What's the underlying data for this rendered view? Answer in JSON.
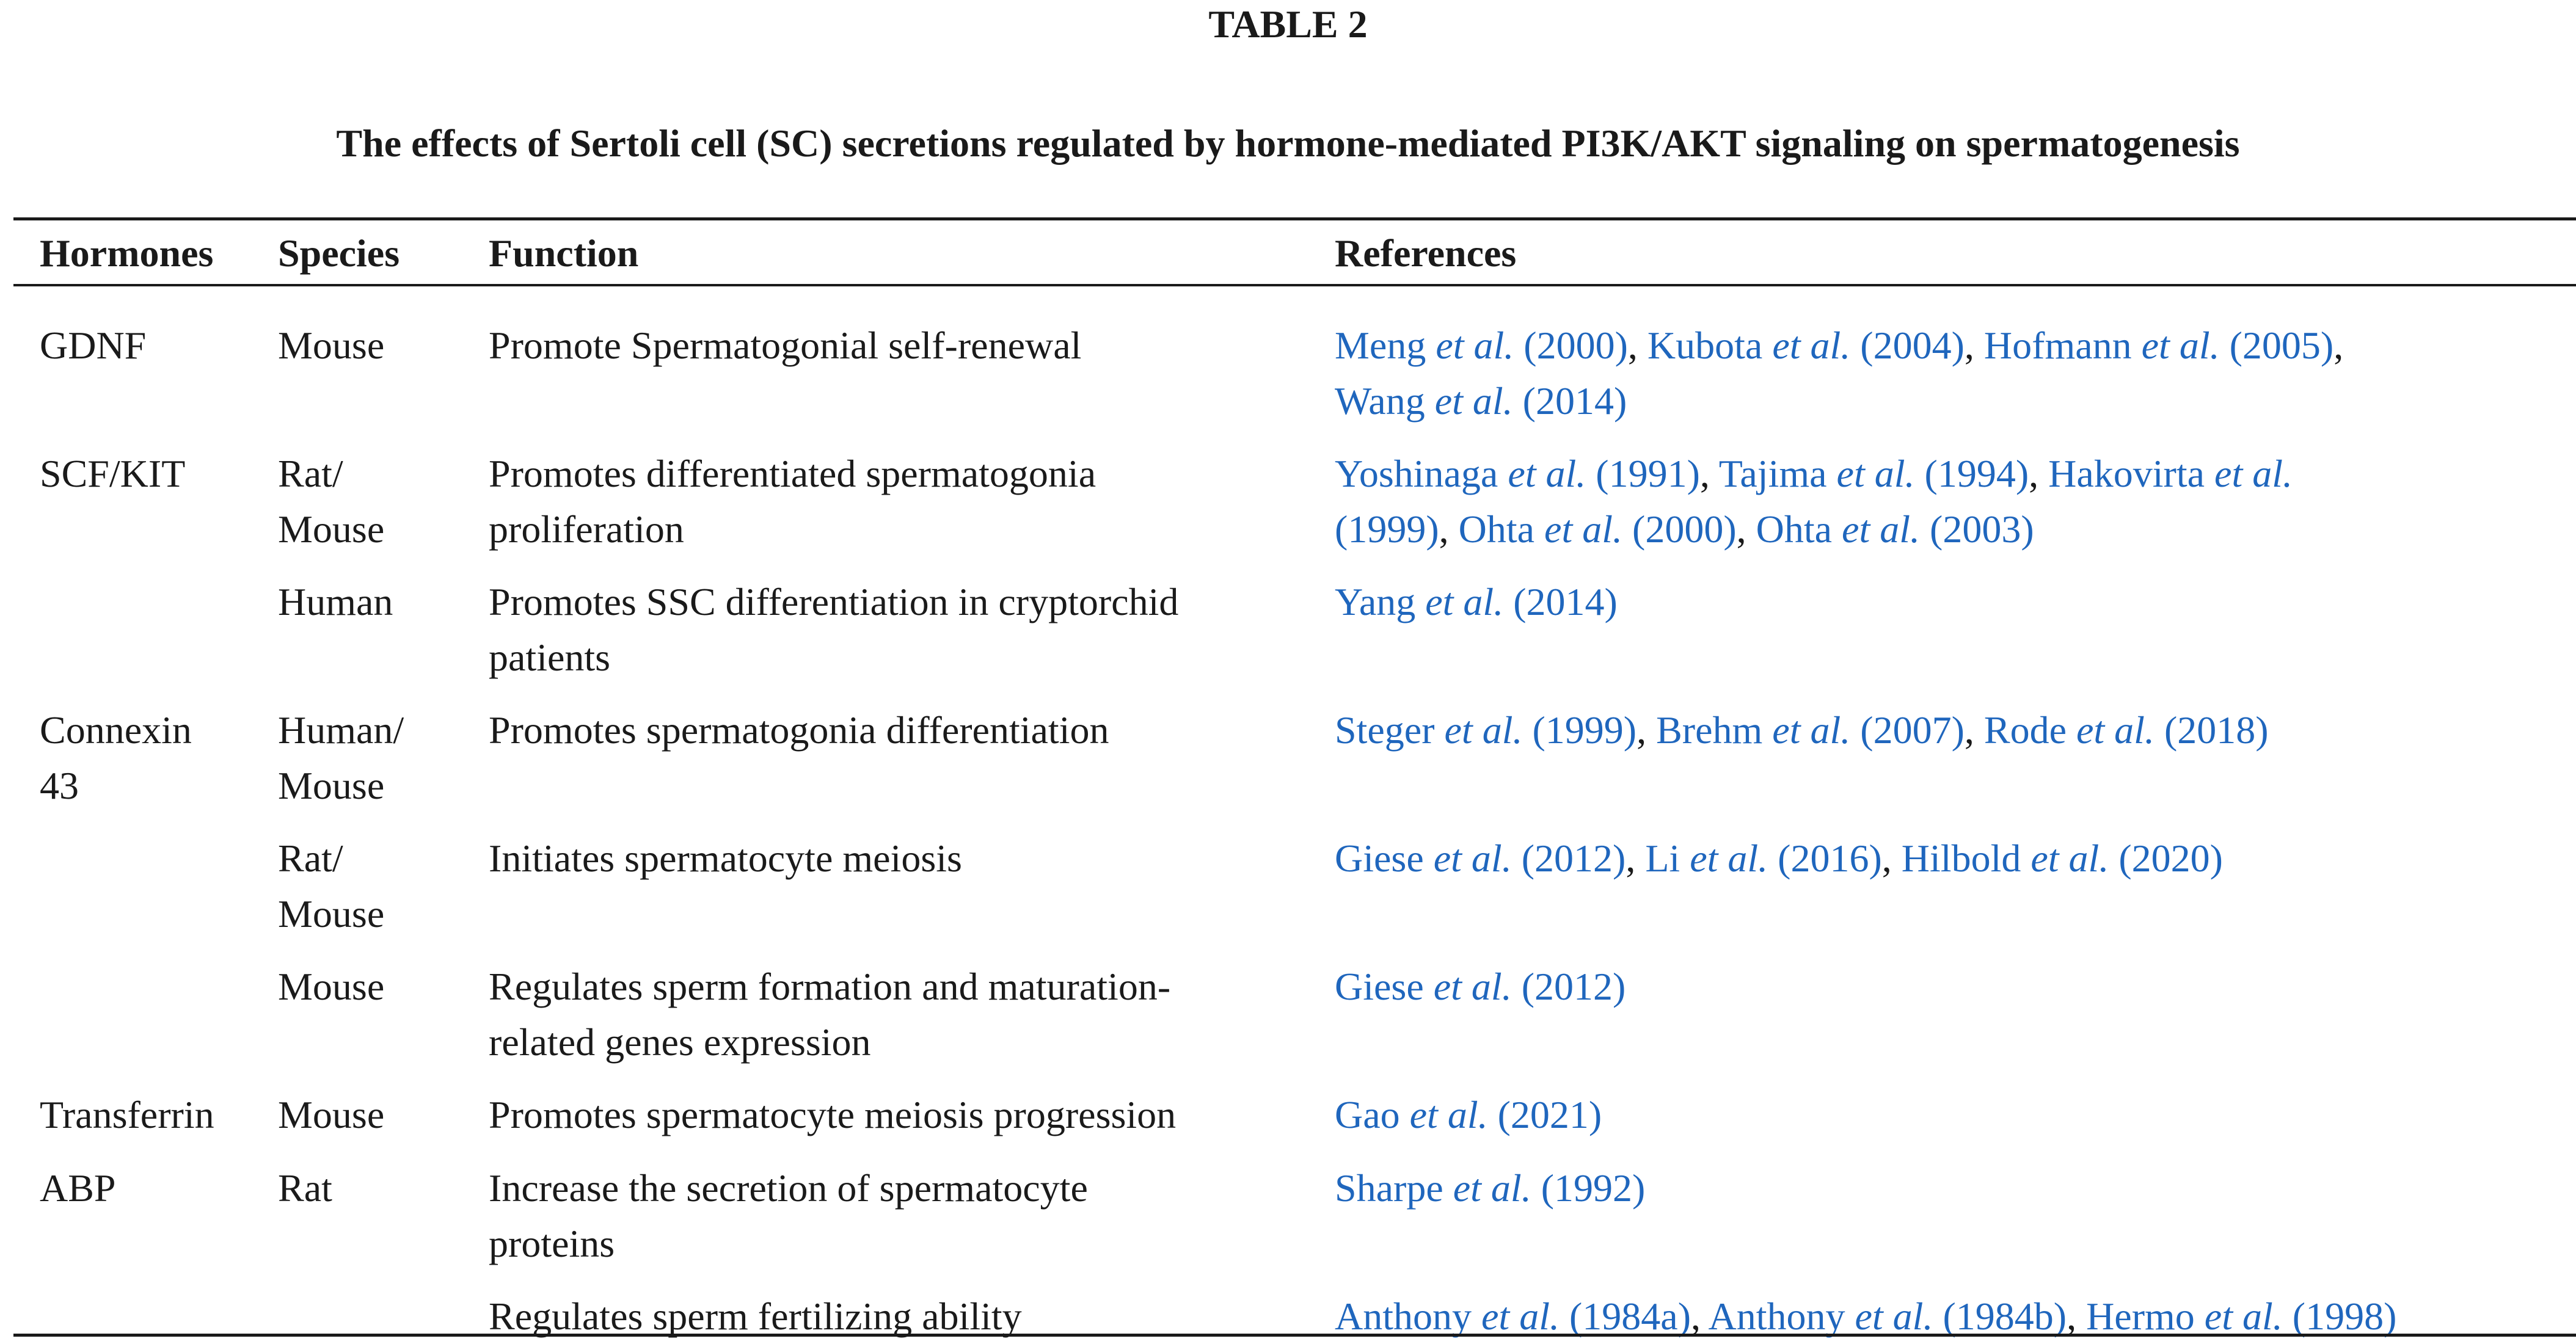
{
  "table": {
    "label": "TABLE 2",
    "title": "The effects of Sertoli cell (SC) secretions regulated by hormone-mediated PI3K/AKT signaling on spermatogenesis",
    "headers": {
      "hormones": "Hormones",
      "species": "Species",
      "function": "Function",
      "references": "References"
    },
    "rows": [
      {
        "hormone": [
          "GDNF"
        ],
        "species": [
          "Mouse"
        ],
        "function": [
          "Promote Spermatogonial self-renewal"
        ],
        "references": [
          [
            {
              "a": "Meng ",
              "b": "et al.",
              "c": " (2000)",
              "sep": ", "
            },
            {
              "a": "Kubota ",
              "b": "et al.",
              "c": " (2004)",
              "sep": ", "
            },
            {
              "a": "Hofmann ",
              "b": "et al.",
              "c": " (2005)",
              "sep": ","
            }
          ],
          [
            {
              "a": "Wang ",
              "b": "et al.",
              "c": " (2014)",
              "sep": ""
            }
          ]
        ]
      },
      {
        "hormone": [
          "SCF/KIT"
        ],
        "species": [
          "Rat/",
          "Mouse"
        ],
        "function": [
          "Promotes differentiated spermatogonia",
          "proliferation"
        ],
        "references": [
          [
            {
              "a": "Yoshinaga ",
              "b": "et al.",
              "c": " (1991)",
              "sep": ", "
            },
            {
              "a": "Tajima ",
              "b": "et al.",
              "c": " (1994)",
              "sep": ", "
            },
            {
              "a": "Hakovirta ",
              "b": "et al.",
              "c": "",
              "sep": ""
            }
          ],
          [
            {
              "a": "(1999)",
              "b": "",
              "c": "",
              "sep": ", "
            },
            {
              "a": "Ohta ",
              "b": "et al.",
              "c": " (2000)",
              "sep": ", "
            },
            {
              "a": "Ohta ",
              "b": "et al.",
              "c": " (2003)",
              "sep": ""
            }
          ]
        ]
      },
      {
        "hormone": [],
        "species": [
          "Human"
        ],
        "function": [
          "Promotes SSC differentiation in cryptorchid",
          "patients"
        ],
        "references": [
          [
            {
              "a": "Yang ",
              "b": "et al.",
              "c": " (2014)",
              "sep": ""
            }
          ]
        ]
      },
      {
        "hormone": [
          "Connexin",
          "43"
        ],
        "species": [
          "Human/",
          "Mouse"
        ],
        "function": [
          "Promotes spermatogonia differentiation"
        ],
        "references": [
          [
            {
              "a": "Steger ",
              "b": "et al.",
              "c": " (1999)",
              "sep": ", "
            },
            {
              "a": "Brehm ",
              "b": "et al.",
              "c": " (2007)",
              "sep": ", "
            },
            {
              "a": "Rode ",
              "b": "et al.",
              "c": " (2018)",
              "sep": ""
            }
          ]
        ]
      },
      {
        "hormone": [],
        "species": [
          "Rat/",
          "Mouse"
        ],
        "function": [
          "Initiates spermatocyte meiosis"
        ],
        "references": [
          [
            {
              "a": "Giese ",
              "b": "et al.",
              "c": " (2012)",
              "sep": ", "
            },
            {
              "a": "Li ",
              "b": "et al.",
              "c": " (2016)",
              "sep": ", "
            },
            {
              "a": "Hilbold ",
              "b": "et al.",
              "c": " (2020)",
              "sep": ""
            }
          ]
        ]
      },
      {
        "hormone": [],
        "species": [
          "Mouse"
        ],
        "function": [
          "Regulates sperm formation and maturation-",
          "related genes expression"
        ],
        "references": [
          [
            {
              "a": "Giese ",
              "b": "et al.",
              "c": " (2012)",
              "sep": ""
            }
          ]
        ]
      },
      {
        "hormone": [
          "Transferrin"
        ],
        "species": [
          "Mouse"
        ],
        "function": [
          "Promotes spermatocyte meiosis progression"
        ],
        "references": [
          [
            {
              "a": "Gao ",
              "b": "et al.",
              "c": " (2021)",
              "sep": ""
            }
          ]
        ]
      },
      {
        "hormone": [
          "ABP"
        ],
        "species": [
          "Rat"
        ],
        "function": [
          "Increase the secretion of spermatocyte",
          "proteins"
        ],
        "references": [
          [
            {
              "a": "Sharpe ",
              "b": "et al.",
              "c": " (1992)",
              "sep": ""
            }
          ]
        ]
      },
      {
        "hormone": [],
        "species": [],
        "function": [
          "Regulates sperm fertilizing ability"
        ],
        "references": [
          [
            {
              "a": "Anthony ",
              "b": "et al.",
              "c": " (1984a)",
              "sep": ", "
            },
            {
              "a": "Anthony ",
              "b": "et al.",
              "c": " (1984b)",
              "sep": ", "
            },
            {
              "a": "Hermo ",
              "b": "et al.",
              "c": " (1998)",
              "sep": ""
            }
          ]
        ]
      }
    ]
  }
}
